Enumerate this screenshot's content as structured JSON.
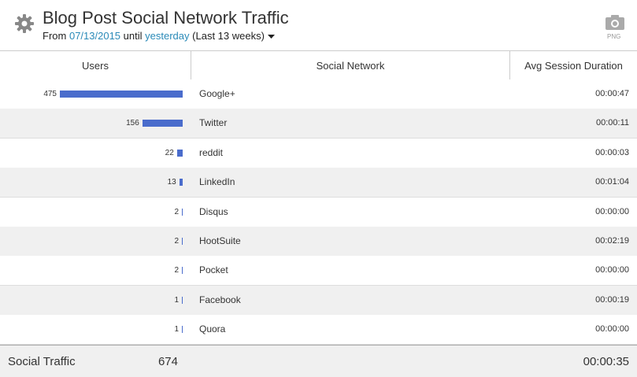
{
  "header": {
    "title": "Blog Post Social Network Traffic",
    "subtitle": {
      "from": "From",
      "start_date": "07/13/2015",
      "until": "until",
      "end_date": "yesterday",
      "range": "(Last 13 weeks)"
    },
    "export": "PNG"
  },
  "table": {
    "columns": [
      "Users",
      "Social Network",
      "Avg Session Duration"
    ],
    "rows": [
      [
        475,
        "Google+",
        "00:00:47"
      ],
      [
        156,
        "Twitter",
        "00:00:11"
      ],
      [
        22,
        "reddit",
        "00:00:03"
      ],
      [
        13,
        "LinkedIn",
        "00:01:04"
      ],
      [
        2,
        "Disqus",
        "00:00:00"
      ],
      [
        2,
        "HootSuite",
        "00:02:19"
      ],
      [
        2,
        "Pocket",
        "00:00:00"
      ],
      [
        1,
        "Facebook",
        "00:00:19"
      ],
      [
        1,
        "Quora",
        "00:00:00"
      ]
    ],
    "bar_color": "#4a6ccc"
  },
  "footer": {
    "label": "Social Traffic",
    "users": 674,
    "duration": "00:00:35"
  }
}
